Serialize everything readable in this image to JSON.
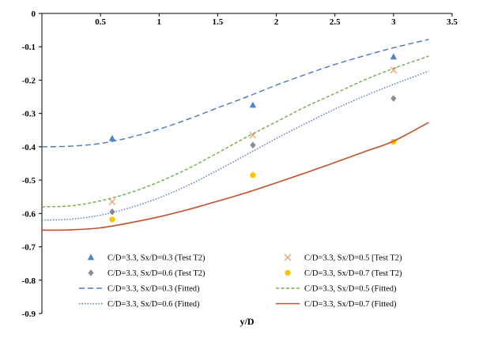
{
  "chart_data": {
    "type": "scatter",
    "title": "",
    "xlabel": "y/D",
    "ylabel": "",
    "xlim": [
      0,
      3.5
    ],
    "ylim": [
      -0.9,
      0
    ],
    "xticks": [
      0,
      0.5,
      1,
      1.5,
      2,
      2.5,
      3,
      3.5
    ],
    "xtick_labels": [
      "0",
      "0.5",
      "1",
      "1.5",
      "2",
      "2.5",
      "3",
      "3.5"
    ],
    "yticks": [
      0,
      -0.1,
      -0.2,
      -0.3,
      -0.4,
      -0.5,
      -0.6,
      -0.7,
      -0.8,
      -0.9
    ],
    "ytick_labels": [
      "0",
      "-0.1",
      "-0.2",
      "-0.3",
      "-0.4",
      "-0.5",
      "-0.6",
      "-0.7",
      "-0.8",
      "-0.9"
    ],
    "grid": false,
    "legend_position": "bottom",
    "series": [
      {
        "name": "C/D=3.3, Sx/D=0.3 (Test T2)",
        "kind": "points",
        "marker": "triangle",
        "color": "#4a86c8",
        "x": [
          0.6,
          1.8,
          3.0
        ],
        "y": [
          -0.375,
          -0.275,
          -0.13
        ]
      },
      {
        "name": "C/D=3.3, Sx/D=0.5 [Test T2)",
        "kind": "points",
        "marker": "cross",
        "color": "#f0a070",
        "x": [
          0.6,
          1.8,
          3.0
        ],
        "y": [
          -0.565,
          -0.365,
          -0.17
        ]
      },
      {
        "name": "C/D=3.3, Sx/D=0.6 (Test T2)",
        "kind": "points",
        "marker": "diamond",
        "color": "#8c8c8c",
        "x": [
          0.6,
          1.8,
          3.0
        ],
        "y": [
          -0.595,
          -0.395,
          -0.255
        ]
      },
      {
        "name": "C/D=3.3, Sx/D=0.7 (Test T2)",
        "kind": "points",
        "marker": "circle",
        "color": "#ffc000",
        "x": [
          0.6,
          1.8,
          3.0
        ],
        "y": [
          -0.618,
          -0.485,
          -0.385
        ]
      },
      {
        "name": "C/D=3.3, Sx/D=0.3 (Fitted)",
        "kind": "line",
        "dash": "dashed",
        "color": "#4a76c6",
        "x": [
          0,
          0.25,
          0.5,
          0.75,
          1.0,
          1.25,
          1.5,
          1.75,
          2.0,
          2.25,
          2.5,
          2.75,
          3.0,
          3.3
        ],
        "y": [
          -0.4,
          -0.398,
          -0.39,
          -0.372,
          -0.347,
          -0.317,
          -0.283,
          -0.25,
          -0.215,
          -0.183,
          -0.153,
          -0.127,
          -0.103,
          -0.078
        ]
      },
      {
        "name": "C/D=3.3, Sx/D=0.5 (Fitted)",
        "kind": "line",
        "dash": "dashed-short",
        "color": "#70ad47",
        "x": [
          0,
          0.25,
          0.5,
          0.75,
          1.0,
          1.25,
          1.5,
          1.75,
          2.0,
          2.25,
          2.5,
          2.75,
          3.0,
          3.3
        ],
        "y": [
          -0.58,
          -0.577,
          -0.562,
          -0.538,
          -0.505,
          -0.465,
          -0.418,
          -0.37,
          -0.325,
          -0.28,
          -0.24,
          -0.2,
          -0.165,
          -0.128
        ]
      },
      {
        "name": "C/D=3.3, Sx/D=0.6 (Fitted)",
        "kind": "line",
        "dash": "dotted",
        "color": "#4a76c6",
        "x": [
          0,
          0.25,
          0.5,
          0.75,
          1.0,
          1.25,
          1.5,
          1.75,
          2.0,
          2.25,
          2.5,
          2.75,
          3.0,
          3.3
        ],
        "y": [
          -0.62,
          -0.617,
          -0.605,
          -0.583,
          -0.553,
          -0.515,
          -0.47,
          -0.423,
          -0.375,
          -0.33,
          -0.287,
          -0.248,
          -0.213,
          -0.173
        ]
      },
      {
        "name": "C/D=3.3, Sx/D=0.7 (Fitted)",
        "kind": "line",
        "dash": "solid",
        "color": "#c0502a",
        "x": [
          0,
          0.25,
          0.5,
          0.75,
          1.0,
          1.25,
          1.5,
          1.75,
          2.0,
          2.25,
          2.5,
          2.75,
          3.0,
          3.3
        ],
        "y": [
          -0.65,
          -0.649,
          -0.643,
          -0.628,
          -0.61,
          -0.588,
          -0.563,
          -0.537,
          -0.508,
          -0.478,
          -0.447,
          -0.415,
          -0.383,
          -0.327
        ]
      }
    ]
  }
}
